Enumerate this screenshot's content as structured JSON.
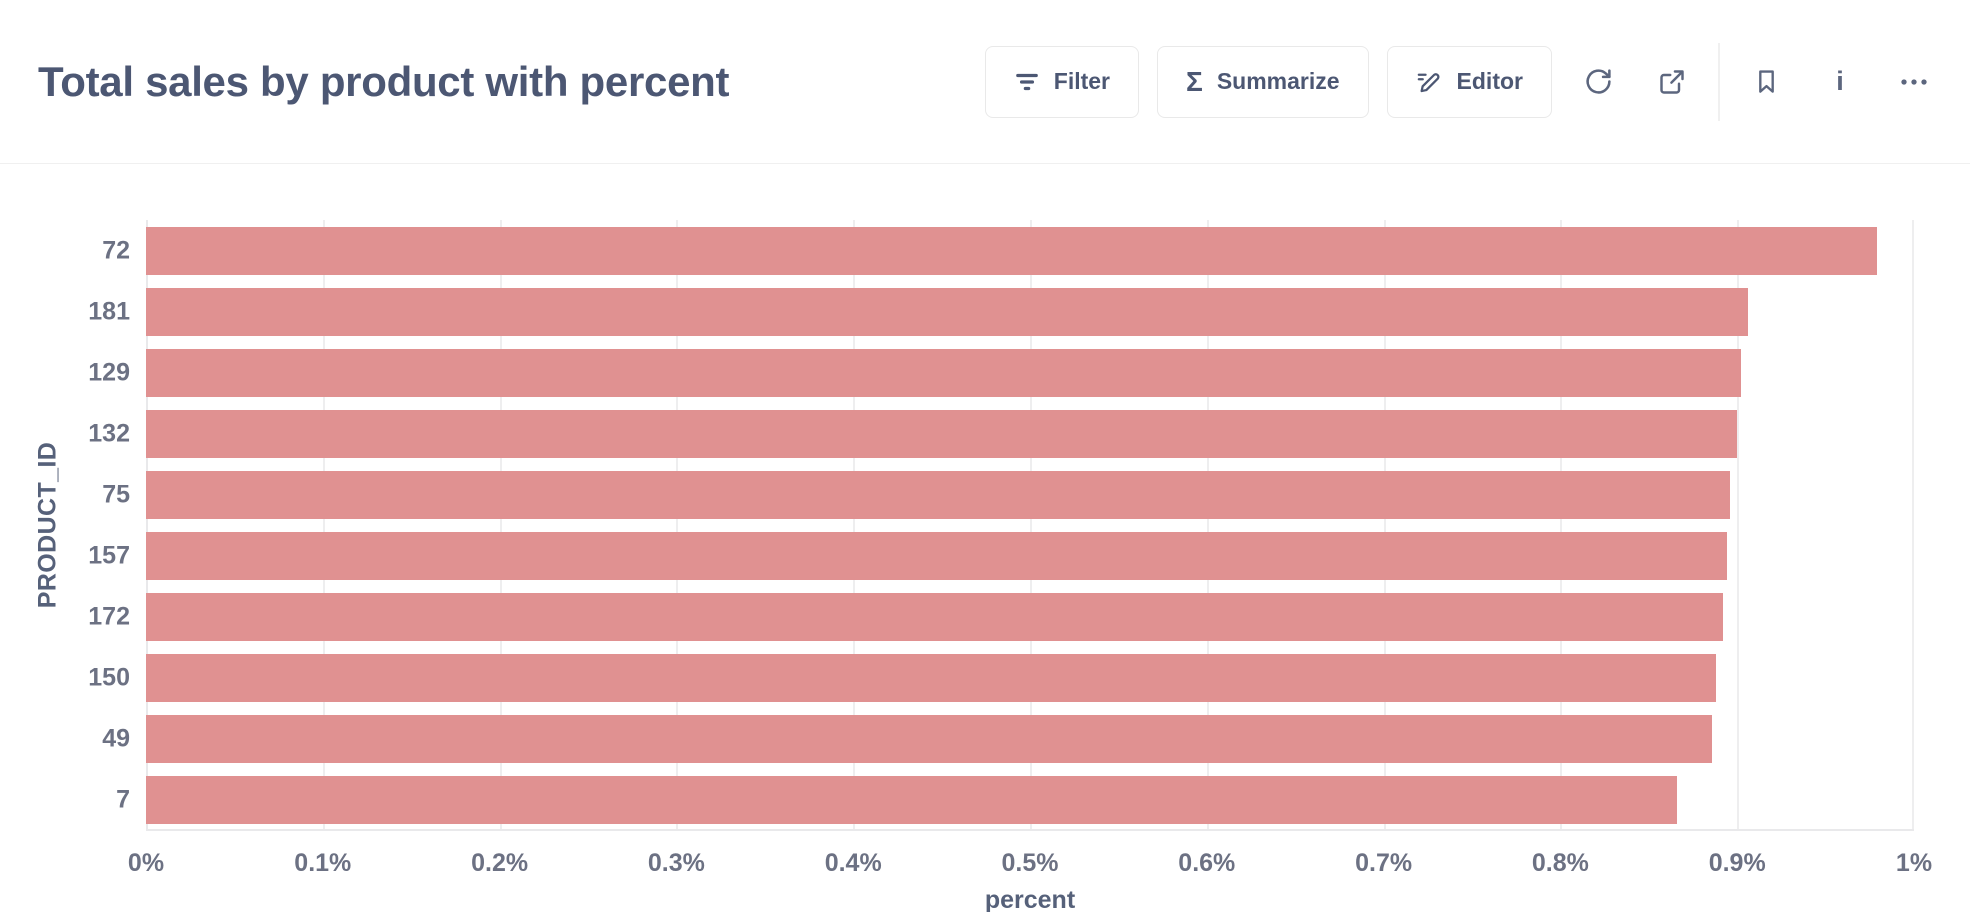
{
  "header": {
    "title": "Total sales by product with percent",
    "buttons": [
      {
        "label": "Filter",
        "icon": "filter-icon"
      },
      {
        "label": "Summarize",
        "icon": "sigma-icon"
      },
      {
        "label": "Editor",
        "icon": "pencil-icon"
      }
    ],
    "icon_buttons": [
      "refresh-icon",
      "share-icon",
      "bookmark-icon",
      "info-icon",
      "ellipsis-icon"
    ],
    "info_glyph": "i"
  },
  "colors": {
    "bar": "#e09191",
    "title_text": "#4c5773",
    "axis_tick_text": "#6c7183",
    "axis_title_text": "#56617a",
    "gridline": "#eeeeef"
  },
  "chart_data": {
    "type": "bar",
    "orientation": "horizontal",
    "ylabel": "PRODUCT_ID",
    "xlabel": "percent",
    "categories": [
      "72",
      "181",
      "129",
      "132",
      "75",
      "157",
      "172",
      "150",
      "49",
      "7"
    ],
    "values": [
      0.979,
      0.906,
      0.902,
      0.9,
      0.896,
      0.894,
      0.892,
      0.888,
      0.886,
      0.866
    ],
    "value_unit": "%",
    "xlim": [
      0,
      1
    ],
    "xticks": [
      {
        "label": "0%",
        "value": 0.0
      },
      {
        "label": "0.1%",
        "value": 0.1
      },
      {
        "label": "0.2%",
        "value": 0.2
      },
      {
        "label": "0.3%",
        "value": 0.3
      },
      {
        "label": "0.4%",
        "value": 0.4
      },
      {
        "label": "0.5%",
        "value": 0.5
      },
      {
        "label": "0.6%",
        "value": 0.6
      },
      {
        "label": "0.7%",
        "value": 0.7
      },
      {
        "label": "0.8%",
        "value": 0.8
      },
      {
        "label": "0.9%",
        "value": 0.9
      },
      {
        "label": "1%",
        "value": 1.0
      }
    ],
    "grid": true,
    "legend": false
  }
}
